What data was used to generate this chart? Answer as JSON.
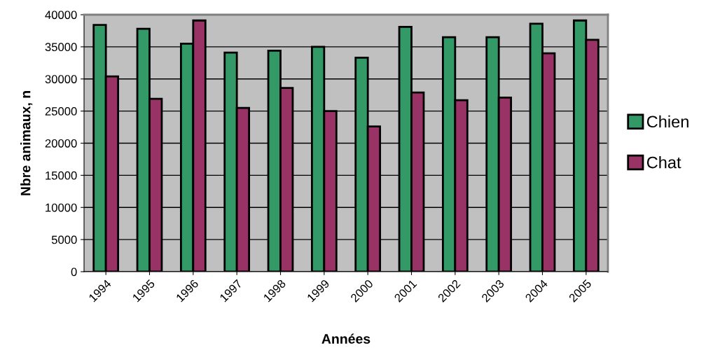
{
  "chart_data": {
    "type": "bar",
    "xlabel": "Années",
    "ylabel": "Nbre animaux, n",
    "categories": [
      "1994",
      "1995",
      "1996",
      "1997",
      "1998",
      "1999",
      "2000",
      "2001",
      "2002",
      "2003",
      "2004",
      "2005"
    ],
    "series": [
      {
        "name": "Chien",
        "color": "#339966",
        "values": [
          38400,
          37800,
          35500,
          34100,
          34400,
          35000,
          33300,
          38100,
          36500,
          36500,
          38600,
          39100
        ]
      },
      {
        "name": "Chat",
        "color": "#993366",
        "values": [
          30400,
          26900,
          39100,
          25500,
          28600,
          25000,
          22600,
          27900,
          26700,
          27100,
          34000,
          36100
        ]
      }
    ],
    "ylim": [
      0,
      40000
    ],
    "yticks": [
      0,
      5000,
      10000,
      15000,
      20000,
      25000,
      30000,
      35000,
      40000
    ],
    "grid": "y",
    "legend": "right"
  }
}
